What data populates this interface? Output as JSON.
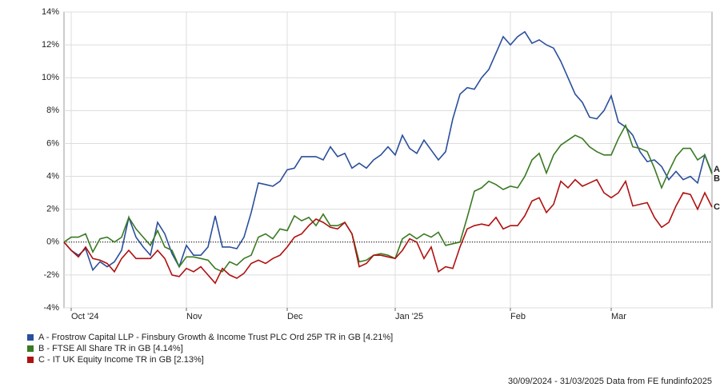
{
  "chart_data": {
    "type": "line",
    "categories": [
      null,
      "Oct '24",
      null,
      null,
      null,
      null,
      null,
      null,
      null,
      null,
      null,
      null,
      null,
      null,
      null,
      null,
      null,
      "Nov",
      null,
      null,
      null,
      null,
      null,
      null,
      null,
      null,
      null,
      null,
      null,
      null,
      null,
      "Dec",
      null,
      null,
      null,
      null,
      null,
      null,
      null,
      null,
      null,
      null,
      null,
      null,
      null,
      null,
      "Jan '25",
      null,
      null,
      null,
      null,
      null,
      null,
      null,
      null,
      null,
      null,
      null,
      null,
      null,
      null,
      null,
      "Feb",
      null,
      null,
      null,
      null,
      null,
      null,
      null,
      null,
      null,
      null,
      null,
      null,
      null,
      "Mar",
      null,
      null,
      null,
      null,
      null,
      null,
      null,
      null,
      null,
      null,
      null,
      null,
      null,
      null
    ],
    "series": [
      {
        "name": "A - Frostrow Capital LLP - Finsbury Growth & Income Trust PLC Ord 25P TR in GB [4.21%]",
        "end_label": "A",
        "color": "#2a4f9c",
        "values": [
          0,
          -0.5,
          -0.8,
          -0.4,
          -1.7,
          -1.2,
          -1.5,
          -1.2,
          -0.5,
          1.5,
          0.3,
          -0.3,
          -0.8,
          1.2,
          0.5,
          -0.7,
          -1.5,
          -0.2,
          -0.8,
          -0.8,
          -0.3,
          1.6,
          -0.3,
          -0.3,
          -0.4,
          0.3,
          1.8,
          3.6,
          3.5,
          3.4,
          3.7,
          4.4,
          4.5,
          5.2,
          5.2,
          5.2,
          5.0,
          5.8,
          5.2,
          5.4,
          4.5,
          4.8,
          4.5,
          5.0,
          5.3,
          5.8,
          5.3,
          6.5,
          5.7,
          5.4,
          6.2,
          5.6,
          5.0,
          5.5,
          7.5,
          9.0,
          9.4,
          9.3,
          10.0,
          10.5,
          11.5,
          12.5,
          12.0,
          12.5,
          12.8,
          12.1,
          12.3,
          12.0,
          11.8,
          11.0,
          10.0,
          9.0,
          8.5,
          7.6,
          7.5,
          8.0,
          8.9,
          7.3,
          7.0,
          6.5,
          5.5,
          4.9,
          5.0,
          4.6,
          3.8,
          4.3,
          3.8,
          4.0,
          3.6,
          5.3,
          4.21
        ]
      },
      {
        "name": "B - FTSE All Share TR in GB [4.14%]",
        "end_label": "B",
        "color": "#3a7a22",
        "values": [
          0,
          0.3,
          0.3,
          0.5,
          -0.6,
          0.2,
          0.3,
          0,
          0.3,
          1.5,
          0.8,
          0.3,
          -0.2,
          0.7,
          -0.3,
          -0.5,
          -1.5,
          -0.9,
          -0.9,
          -1.0,
          -1.1,
          -1.6,
          -1.8,
          -1.2,
          -1.4,
          -1.0,
          -0.8,
          0.3,
          0.5,
          0.2,
          0.8,
          0.7,
          1.6,
          1.3,
          1.5,
          1.0,
          1.7,
          1.0,
          1.0,
          1.2,
          0.5,
          -1.2,
          -1.1,
          -0.8,
          -0.7,
          -0.8,
          -1.0,
          0.2,
          0.5,
          0.2,
          0.5,
          0.3,
          0.6,
          -0.2,
          -0.1,
          0,
          1.5,
          3.1,
          3.3,
          3.7,
          3.5,
          3.2,
          3.4,
          3.3,
          4.0,
          5.0,
          5.4,
          4.2,
          5.3,
          5.9,
          6.2,
          6.5,
          6.3,
          5.8,
          5.5,
          5.3,
          5.3,
          6.3,
          7.1,
          5.8,
          5.7,
          5.5,
          4.5,
          3.3,
          4.3,
          5.2,
          5.7,
          5.7,
          5.0,
          5.3,
          4.14
        ]
      },
      {
        "name": "C - IT UK Equity Income TR in GB [2.13%]",
        "end_label": "C",
        "color": "#b01010",
        "values": [
          0,
          -0.5,
          -0.9,
          -0.3,
          -1.0,
          -1.1,
          -1.3,
          -1.8,
          -1.0,
          -0.5,
          -1.0,
          -1.0,
          -1.0,
          -0.5,
          -1.0,
          -2.0,
          -2.1,
          -1.6,
          -1.8,
          -1.5,
          -2.0,
          -2.5,
          -1.6,
          -2.0,
          -2.2,
          -1.9,
          -1.3,
          -1.1,
          -1.3,
          -1.0,
          -0.8,
          -0.3,
          0.3,
          0.5,
          1.0,
          1.4,
          1.2,
          0.9,
          0.8,
          1.2,
          0.5,
          -1.5,
          -1.3,
          -0.8,
          -0.8,
          -0.9,
          -1.0,
          -0.5,
          0.2,
          0,
          -1.0,
          -0.3,
          -1.8,
          -1.5,
          -1.6,
          -0.3,
          0.8,
          1.0,
          1.1,
          1.0,
          1.5,
          0.8,
          1.0,
          1.0,
          1.6,
          2.5,
          2.7,
          1.8,
          2.3,
          3.7,
          3.3,
          3.8,
          3.4,
          3.6,
          3.8,
          3.0,
          2.7,
          3.0,
          3.7,
          2.2,
          2.3,
          2.4,
          1.5,
          0.9,
          1.2,
          2.2,
          3.0,
          2.9,
          2.0,
          3.0,
          2.13
        ]
      }
    ],
    "ylim": [
      -4,
      14
    ],
    "yticks": [
      {
        "value": -4,
        "label": "-4%"
      },
      {
        "value": -2,
        "label": "-2%"
      },
      {
        "value": 0,
        "label": "0%"
      },
      {
        "value": 2,
        "label": "2%"
      },
      {
        "value": 4,
        "label": "4%"
      },
      {
        "value": 6,
        "label": "6%"
      },
      {
        "value": 8,
        "label": "8%"
      },
      {
        "value": 10,
        "label": "10%"
      },
      {
        "value": 12,
        "label": "12%"
      },
      {
        "value": 14,
        "label": "14%"
      }
    ],
    "grid": true,
    "footer": "30/09/2024 - 31/03/2025 Data from FE fundinfo2025"
  }
}
